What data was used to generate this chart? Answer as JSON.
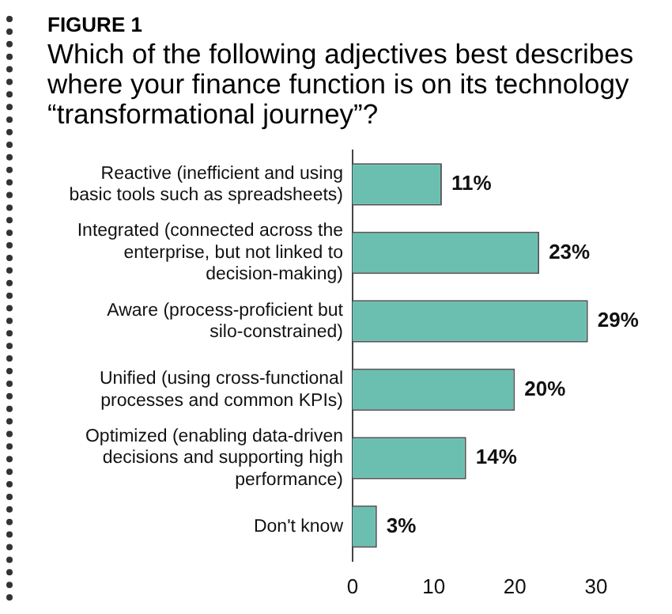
{
  "chart_data": {
    "type": "bar",
    "orientation": "horizontal",
    "title": "FIGURE 1",
    "subtitle": "Which of the following adjectives best describes where your finance function is on its technology “transformational journey”?",
    "categories": [
      "Reactive (inefficient and using basic tools such as spreadsheets)",
      "Integrated (connected across the enterprise, but not linked to decision-making)",
      "Aware (process-proficient but silo-constrained)",
      "Unified (using cross-functional processes and common KPIs)",
      "Optimized (enabling data-driven decisions and supporting high performance)",
      "Don't know"
    ],
    "values": [
      11,
      23,
      29,
      20,
      14,
      3
    ],
    "value_labels": [
      "11%",
      "23%",
      "29%",
      "20%",
      "14%",
      "3%"
    ],
    "color": "#6bbfb1",
    "xlim": [
      0,
      30
    ],
    "xticks": [
      0,
      10,
      20,
      30
    ],
    "grid": false,
    "legend": false
  }
}
